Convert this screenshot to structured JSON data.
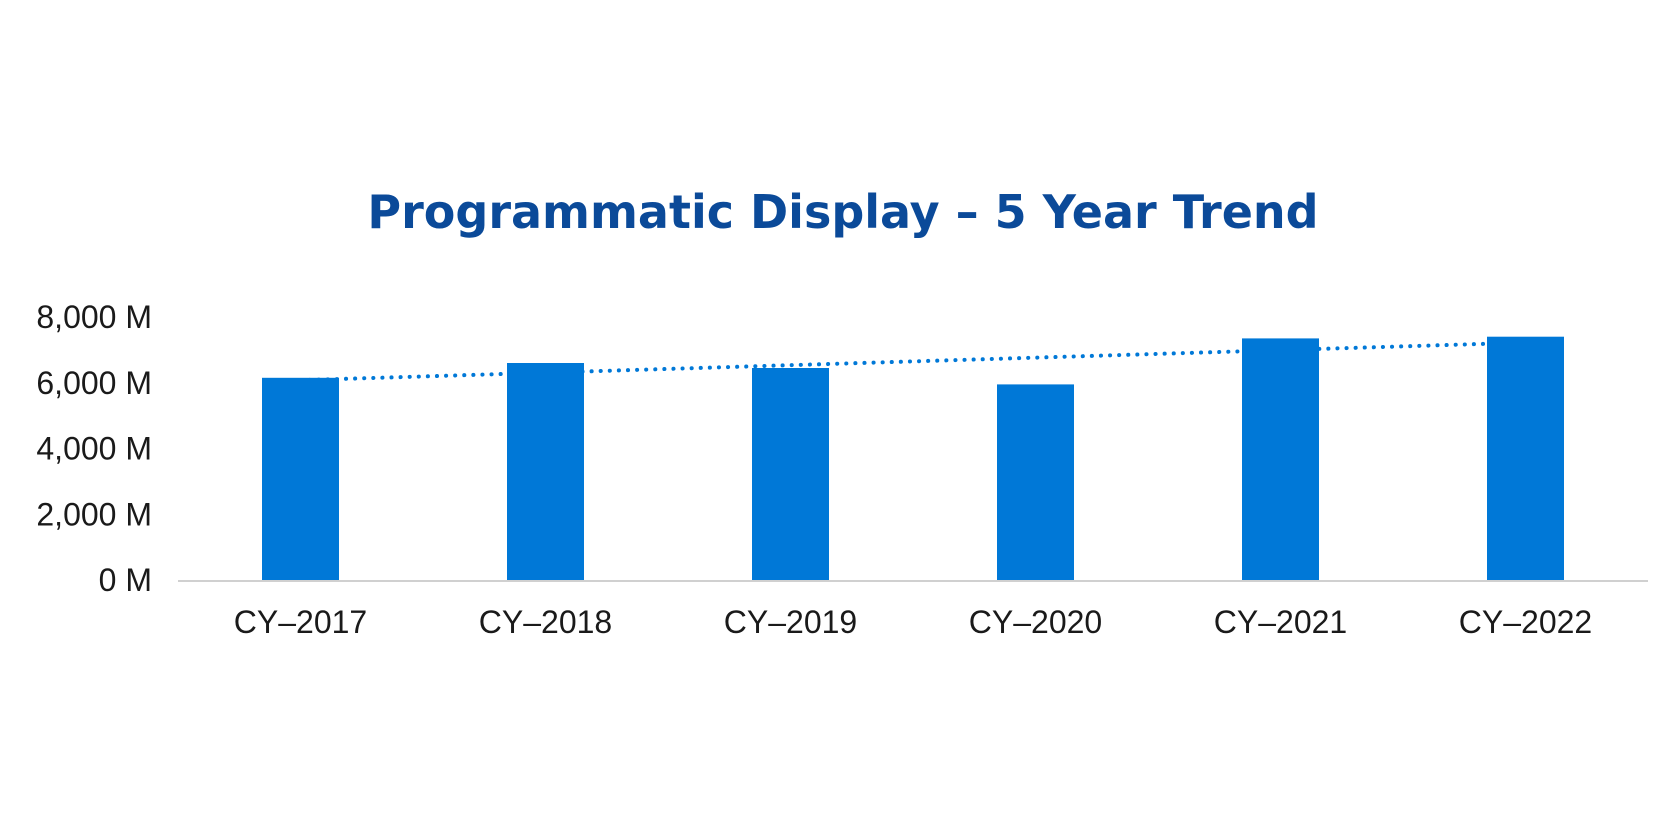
{
  "chart_data": {
    "type": "bar",
    "title": "Programmatic Display – 5 Year Trend",
    "categories": [
      "CY–2017",
      "CY–2018",
      "CY–2019",
      "CY–2020",
      "CY–2021",
      "CY–2022"
    ],
    "values": [
      6150,
      6600,
      6450,
      5950,
      7350,
      7400
    ],
    "ylim": [
      0,
      8000
    ],
    "y_ticks": [
      0,
      2000,
      4000,
      6000,
      8000
    ],
    "y_tick_labels": [
      "0 M",
      "2,000 M",
      "4,000 M",
      "6,000 M",
      "8,000 M"
    ],
    "xlabel": "",
    "ylabel": "",
    "grid": false,
    "legend": "none",
    "trendline": {
      "type": "linear",
      "style": "dotted"
    },
    "colors": {
      "bar": "#0078D7",
      "trendline": "#0078D7",
      "title": "#0B4A99",
      "axis": "#D0D0D0"
    }
  }
}
